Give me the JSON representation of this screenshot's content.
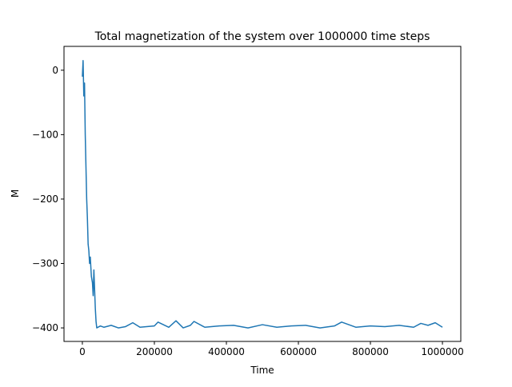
{
  "chart_data": {
    "type": "line",
    "title": "Total magnetization of the system over 1000000 time steps",
    "xlabel": "Time",
    "ylabel": "M",
    "x": [
      0,
      2000,
      4000,
      6000,
      8000,
      10000,
      12000,
      14000,
      16000,
      18000,
      20000,
      22000,
      25000,
      28000,
      30000,
      32000,
      34000,
      36000,
      38000,
      40000,
      50000,
      60000,
      80000,
      100000,
      120000,
      140000,
      160000,
      200000,
      210000,
      240000,
      260000,
      280000,
      300000,
      310000,
      340000,
      380000,
      420000,
      460000,
      500000,
      540000,
      580000,
      620000,
      660000,
      700000,
      720000,
      760000,
      800000,
      840000,
      880000,
      920000,
      940000,
      960000,
      980000,
      1000000
    ],
    "series": [
      {
        "color": "#1f77b4",
        "values": [
          -10,
          15,
          -40,
          -20,
          -100,
          -150,
          -200,
          -230,
          -270,
          -280,
          -300,
          -290,
          -320,
          -330,
          -350,
          -310,
          -340,
          -370,
          -390,
          -400,
          -397,
          -399,
          -396,
          -400,
          -398,
          -392,
          -399,
          -397,
          -391,
          -399,
          -389,
          -400,
          -396,
          -390,
          -399,
          -397,
          -396,
          -400,
          -395,
          -399,
          -397,
          -396,
          -400,
          -397,
          -391,
          -399,
          -397,
          -398,
          -396,
          -399,
          -393,
          -396,
          -392,
          -399
        ]
      }
    ],
    "xlim": [
      -51000,
      1051000
    ],
    "ylim": [
      -421,
      37
    ],
    "xticks": [
      0,
      200000,
      400000,
      600000,
      800000,
      1000000
    ],
    "yticks": [
      0,
      {
        "value": -100,
        "label": "−100"
      },
      {
        "value": -200,
        "label": "−200"
      },
      {
        "value": -300,
        "label": "−300"
      },
      {
        "value": -400,
        "label": "−400"
      }
    ]
  }
}
